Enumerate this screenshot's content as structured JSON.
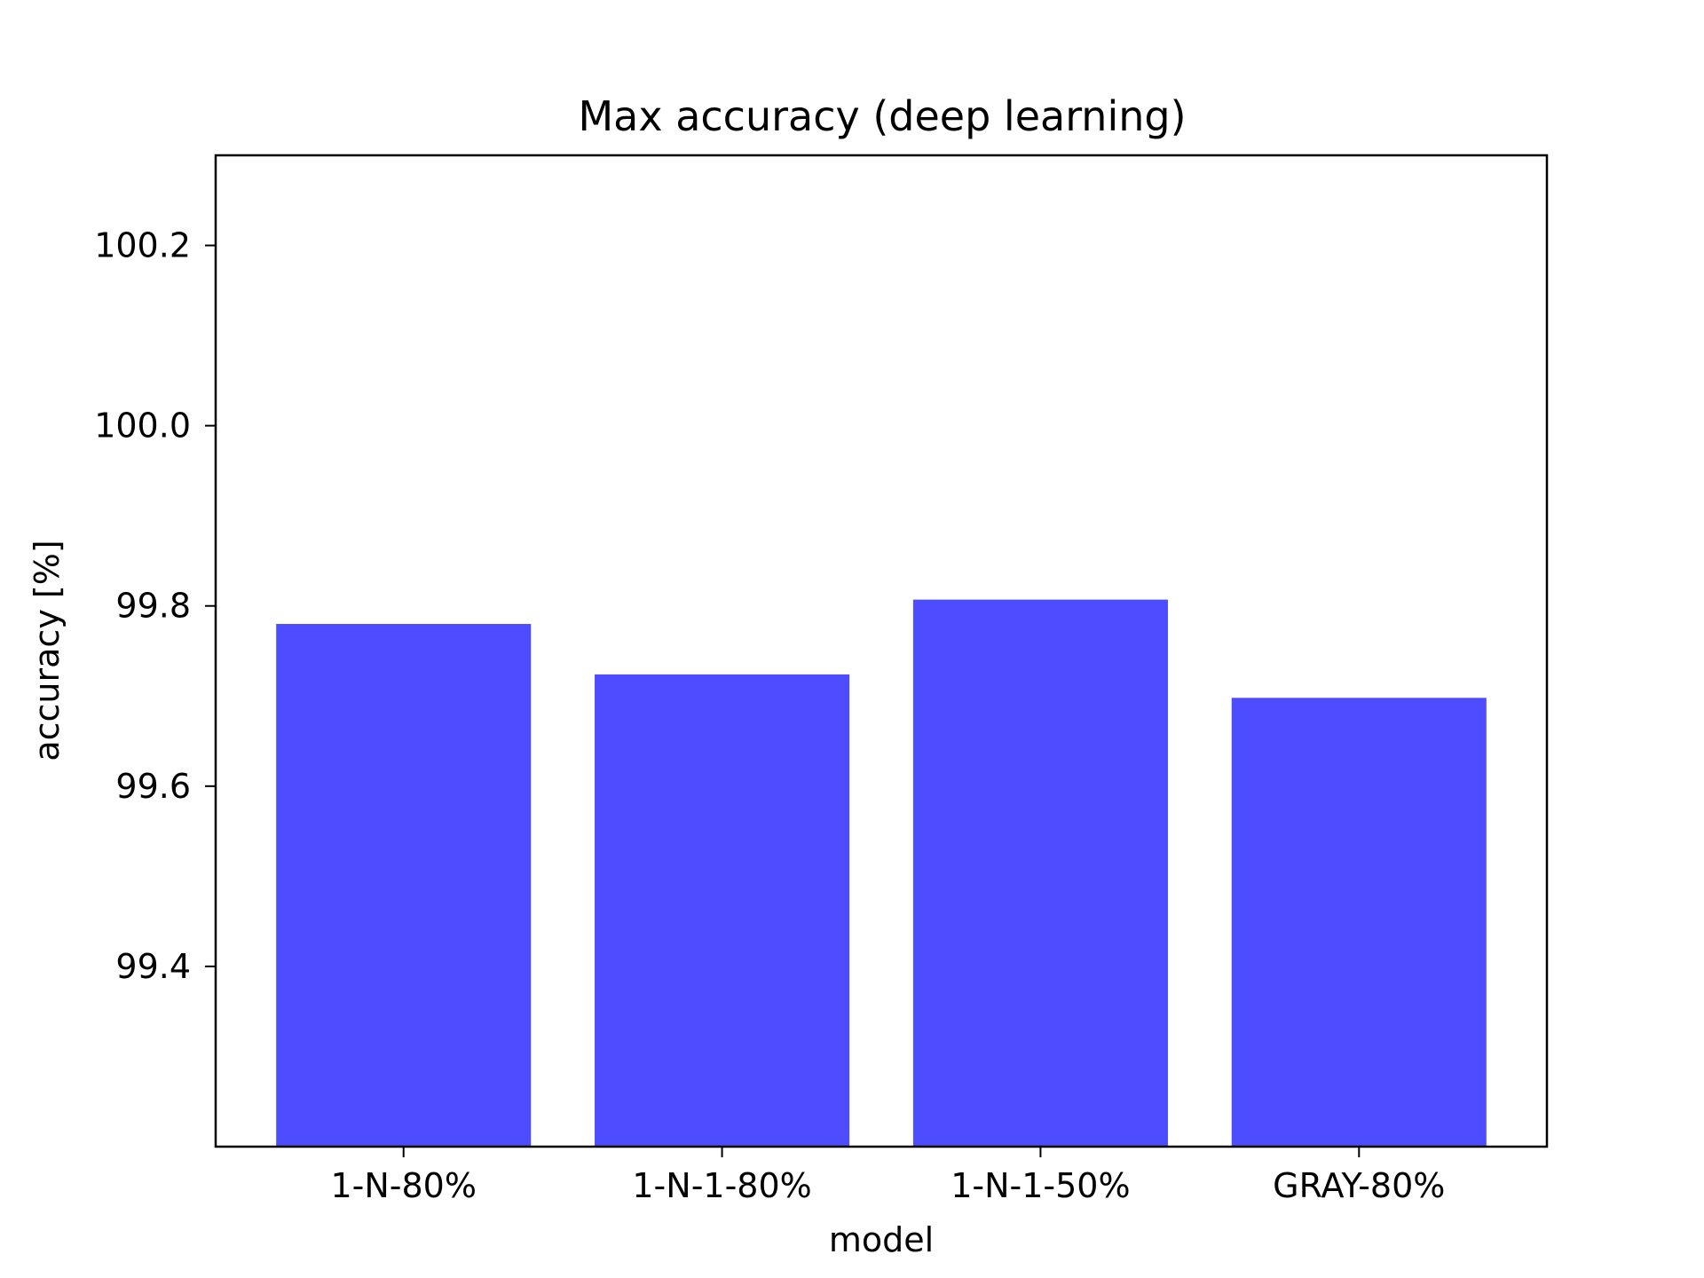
{
  "chart_data": {
    "type": "bar",
    "title": "Max accuracy (deep learning)",
    "xlabel": "model",
    "ylabel": "accuracy [%]",
    "categories": [
      "1-N-80%",
      "1-N-1-80%",
      "1-N-1-50%",
      "GRAY-80%"
    ],
    "values": [
      99.78,
      99.724,
      99.807,
      99.698
    ],
    "ylim": [
      99.2,
      100.3
    ],
    "yticks": [
      99.4,
      99.6,
      99.8,
      100.0,
      100.2
    ],
    "ytick_labels": [
      "99.4",
      "99.6",
      "99.8",
      "100.0",
      "100.2"
    ],
    "bar_color": "#4d4dff",
    "grid": false,
    "legend": "none"
  }
}
